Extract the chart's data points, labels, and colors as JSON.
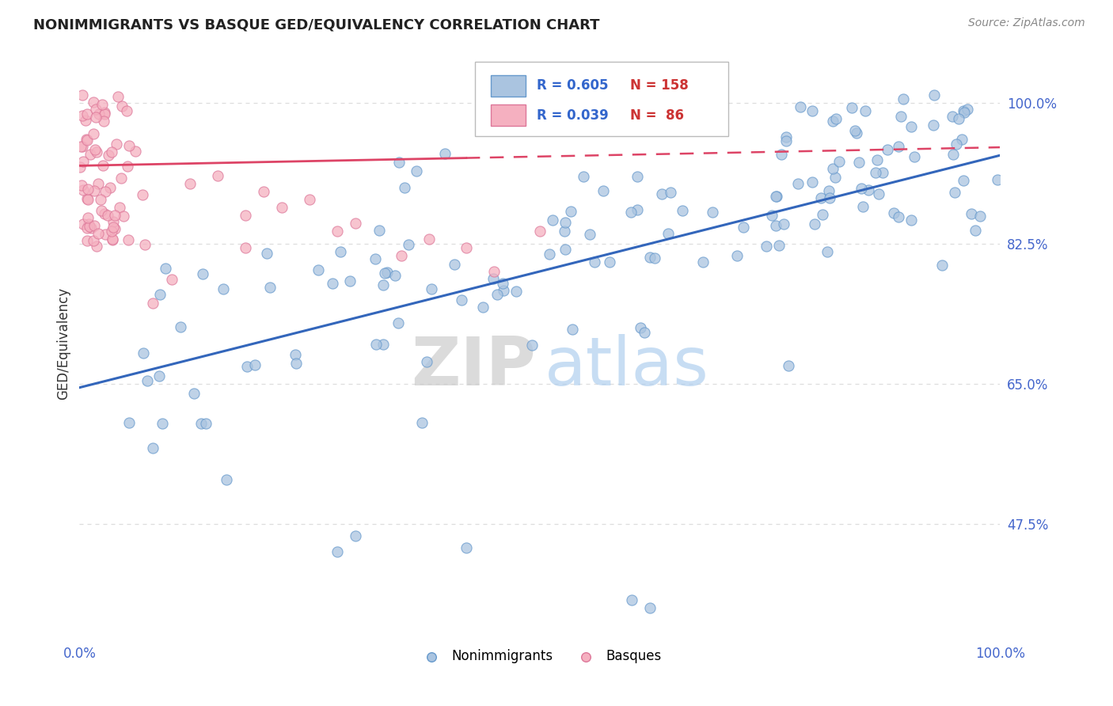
{
  "title": "NONIMMIGRANTS VS BASQUE GED/EQUIVALENCY CORRELATION CHART",
  "source": "Source: ZipAtlas.com",
  "xlim": [
    0.0,
    1.0
  ],
  "ylim": [
    0.33,
    1.07
  ],
  "ylabel_values": [
    0.475,
    0.65,
    0.825,
    1.0
  ],
  "ylabel_labels": [
    "47.5%",
    "65.0%",
    "82.5%",
    "100.0%"
  ],
  "legend_blue_R": "0.605",
  "legend_blue_N": "158",
  "legend_pink_R": "0.039",
  "legend_pink_N": " 86",
  "watermark_zip": "ZIP",
  "watermark_atlas": "atlas",
  "blue_scatter_color": "#aac4e0",
  "blue_edge_color": "#6699cc",
  "blue_line_color": "#3366bb",
  "pink_scatter_color": "#f5b0c0",
  "pink_edge_color": "#dd7799",
  "pink_line_color": "#dd4466",
  "ylabel_text": "GED/Equivalency",
  "tick_color": "#4466cc",
  "title_color": "#222222",
  "source_color": "#888888",
  "grid_color": "#dddddd",
  "legend_R_color": "#3366cc",
  "legend_N_color": "#cc3333",
  "blue_trend_start_y": 0.645,
  "blue_trend_end_y": 0.935,
  "pink_trend_start_y": 0.922,
  "pink_trend_end_y": 0.945
}
